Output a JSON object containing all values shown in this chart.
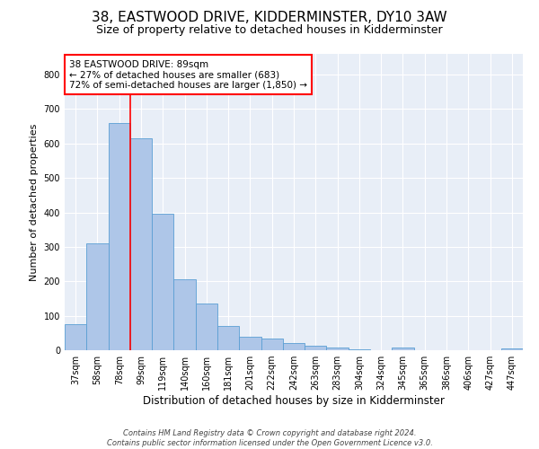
{
  "title": "38, EASTWOOD DRIVE, KIDDERMINSTER, DY10 3AW",
  "subtitle": "Size of property relative to detached houses in Kidderminster",
  "xlabel": "Distribution of detached houses by size in Kidderminster",
  "ylabel": "Number of detached properties",
  "categories": [
    "37sqm",
    "58sqm",
    "78sqm",
    "99sqm",
    "119sqm",
    "140sqm",
    "160sqm",
    "181sqm",
    "201sqm",
    "222sqm",
    "242sqm",
    "263sqm",
    "283sqm",
    "304sqm",
    "324sqm",
    "345sqm",
    "365sqm",
    "386sqm",
    "406sqm",
    "427sqm",
    "447sqm"
  ],
  "values": [
    75,
    310,
    660,
    615,
    395,
    205,
    135,
    70,
    40,
    33,
    20,
    13,
    8,
    3,
    0,
    7,
    0,
    0,
    0,
    0,
    5
  ],
  "bar_color": "#aec6e8",
  "bar_edge_color": "#5a9fd4",
  "red_line_x": 2.5,
  "annotation_text": "38 EASTWOOD DRIVE: 89sqm\n← 27% of detached houses are smaller (683)\n72% of semi-detached houses are larger (1,850) →",
  "annotation_box_color": "white",
  "annotation_box_edge": "red",
  "ylim": [
    0,
    860
  ],
  "yticks": [
    0,
    100,
    200,
    300,
    400,
    500,
    600,
    700,
    800
  ],
  "footer": "Contains HM Land Registry data © Crown copyright and database right 2024.\nContains public sector information licensed under the Open Government Licence v3.0.",
  "bg_color": "#e8eef7",
  "grid_color": "#ffffff",
  "title_fontsize": 11,
  "subtitle_fontsize": 9,
  "tick_fontsize": 7.0,
  "ylabel_fontsize": 8,
  "xlabel_fontsize": 8.5,
  "footer_fontsize": 6.0,
  "annotation_fontsize": 7.5
}
